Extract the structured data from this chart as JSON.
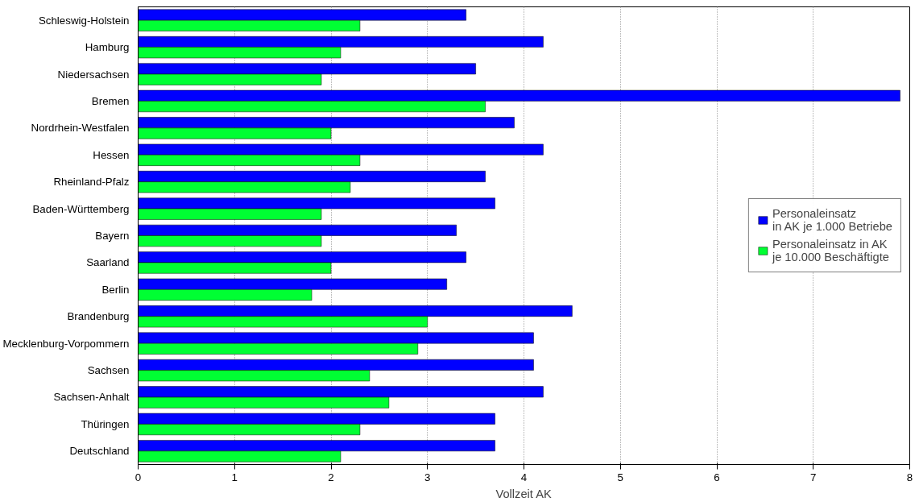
{
  "chart_data": {
    "type": "bar",
    "orientation": "horizontal",
    "xlabel": "Vollzeit AK",
    "categories": [
      "Schleswig-Holstein",
      "Hamburg",
      "Niedersachsen",
      "Bremen",
      "Nordrhein-Westfalen",
      "Hessen",
      "Rheinland-Pfalz",
      "Baden-Württemberg",
      "Bayern",
      "Saarland",
      "Berlin",
      "Brandenburg",
      "Mecklenburg-Vorpommern",
      "Sachsen",
      "Sachsen-Anhalt",
      "Thüringen",
      "Deutschland"
    ],
    "series": [
      {
        "name": "Personaleinsatz\nin AK je 1.000 Betriebe",
        "color": "#0000ff",
        "values": [
          3.4,
          4.2,
          3.5,
          7.9,
          3.9,
          4.2,
          3.6,
          3.7,
          3.3,
          3.4,
          3.2,
          4.5,
          4.1,
          4.1,
          4.2,
          3.7,
          3.7
        ]
      },
      {
        "name": "Personaleinsatz in AK\nje 10.000 Beschäftigte",
        "color": "#00ff33",
        "values": [
          2.3,
          2.1,
          1.9,
          3.6,
          2.0,
          2.3,
          2.2,
          1.9,
          1.9,
          2.0,
          1.8,
          3.0,
          2.9,
          2.4,
          2.6,
          2.3,
          2.1
        ]
      }
    ],
    "xlim": [
      0,
      8
    ],
    "xticks": [
      0,
      1,
      2,
      3,
      4,
      5,
      6,
      7,
      8
    ],
    "grid": "x",
    "legend": "right"
  }
}
